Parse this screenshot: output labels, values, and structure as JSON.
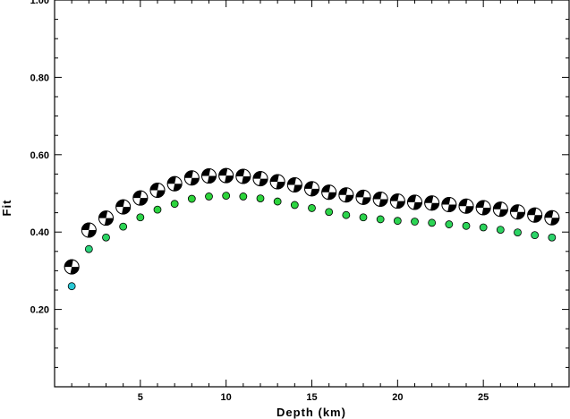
{
  "chart_data": {
    "type": "scatter",
    "xlabel": "Depth (km)",
    "ylabel": "Fit",
    "xlim": [
      0,
      30
    ],
    "ylim": [
      0,
      1.0
    ],
    "xticks": [
      5,
      10,
      15,
      20,
      25
    ],
    "xtick_labels": [
      "5",
      "10",
      "15",
      "20",
      "25"
    ],
    "yticks": [
      0.2,
      0.4,
      0.6,
      0.8,
      1.0
    ],
    "ytick_labels": [
      "0.20",
      "0.40",
      "0.60",
      "0.80",
      "1.00"
    ],
    "grid": false,
    "series": [
      {
        "marker": "circle",
        "x": [
          1,
          2,
          3,
          4,
          5,
          6,
          7,
          8,
          9,
          10,
          11,
          12,
          13,
          14,
          15,
          16,
          17,
          18,
          19,
          20,
          21,
          22,
          23,
          24,
          25,
          26,
          27,
          28,
          29
        ],
        "y": [
          0.26,
          0.356,
          0.386,
          0.414,
          0.438,
          0.458,
          0.473,
          0.486,
          0.492,
          0.494,
          0.492,
          0.487,
          0.479,
          0.47,
          0.462,
          0.452,
          0.444,
          0.438,
          0.433,
          0.429,
          0.427,
          0.424,
          0.42,
          0.416,
          0.412,
          0.406,
          0.399,
          0.392,
          0.386
        ],
        "colors": [
          "#2ac8d4",
          "#2cd47c",
          "#2cd464",
          "#2cd454",
          "#2cd448",
          "#2cd440",
          "#2cd43c",
          "#2cd43a",
          "#2cd43a",
          "#2cd43a",
          "#2cd43a",
          "#2cd43c",
          "#2cd43c",
          "#2cd440",
          "#2cd444",
          "#2cd448",
          "#2cd44c",
          "#2cd44c",
          "#2cd450",
          "#2cd450",
          "#2cd454",
          "#2cd454",
          "#2cd458",
          "#2cd458",
          "#2cd45c",
          "#2cd460",
          "#2cd464",
          "#2cd468",
          "#2cd46c"
        ]
      },
      {
        "marker": "focal-mechanism",
        "x": [
          1,
          2,
          3,
          4,
          5,
          6,
          7,
          8,
          9,
          10,
          11,
          12,
          13,
          14,
          15,
          16,
          17,
          18,
          19,
          20,
          21,
          22,
          23,
          24,
          25,
          26,
          27,
          28,
          29
        ],
        "y": [
          0.31,
          0.405,
          0.436,
          0.465,
          0.488,
          0.508,
          0.525,
          0.54,
          0.545,
          0.546,
          0.544,
          0.538,
          0.53,
          0.522,
          0.512,
          0.503,
          0.496,
          0.49,
          0.485,
          0.48,
          0.477,
          0.475,
          0.471,
          0.467,
          0.463,
          0.459,
          0.452,
          0.444,
          0.437
        ]
      }
    ]
  }
}
